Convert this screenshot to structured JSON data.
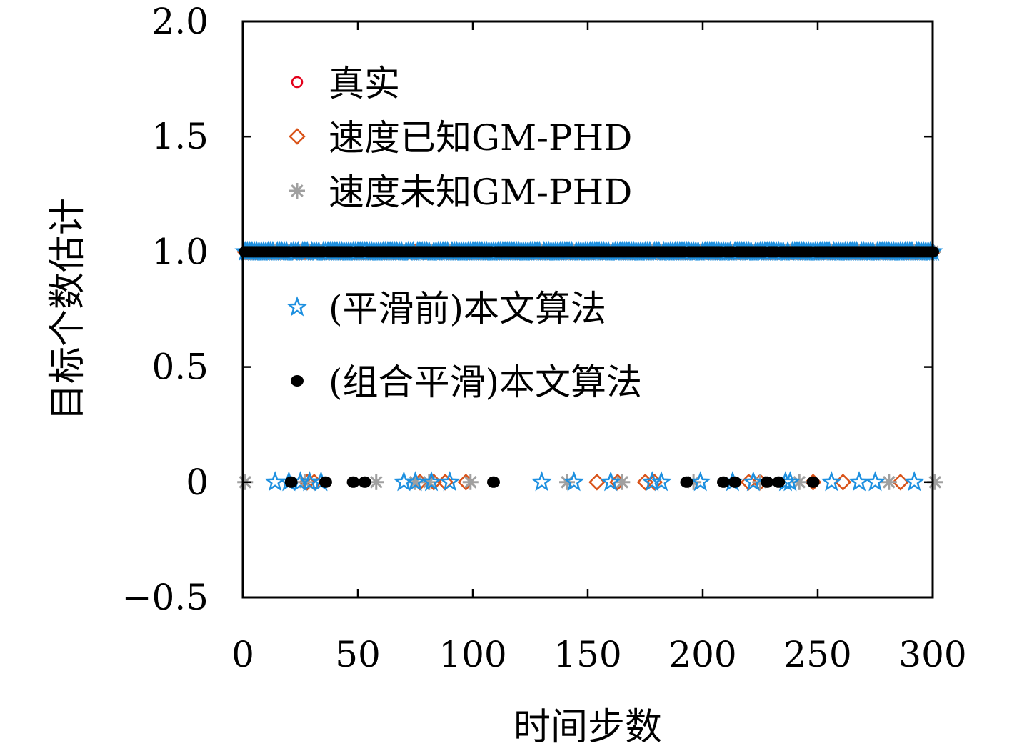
{
  "chart_data": {
    "type": "scatter",
    "title": "",
    "xlabel": "时间步数",
    "ylabel": "目标个数估计",
    "xlim": [
      0,
      300
    ],
    "ylim": [
      -0.5,
      2.0
    ],
    "xticks": [
      0,
      50,
      100,
      150,
      200,
      250,
      300
    ],
    "yticks": [
      -0.5,
      0,
      0.5,
      1.0,
      1.5,
      2.0
    ],
    "xtick_labels": [
      "0",
      "50",
      "100",
      "150",
      "200",
      "250",
      "300"
    ],
    "ytick_labels": [
      "−0.5",
      "0",
      "0.5",
      "1.0",
      "1.5",
      "2.0"
    ],
    "grid": false,
    "legend_placement": "top-left, split into two groups",
    "series": [
      {
        "name": "真实",
        "marker": "circle",
        "color": "#e3001b",
        "ones_range": [
          1,
          300
        ],
        "zeros": []
      },
      {
        "name": "速度已知GM-PHD",
        "marker": "diamond",
        "color": "#d95319",
        "ones_range": [
          1,
          300
        ],
        "zeros": [
          28,
          31,
          77,
          83,
          88,
          97,
          154,
          163,
          175,
          179,
          220,
          225,
          248,
          261,
          286
        ]
      },
      {
        "name": "速度未知GM-PHD",
        "marker": "asterisk",
        "color": "#a0a0a0",
        "ones_range": [
          1,
          300
        ],
        "zeros": [
          1,
          27,
          58,
          75,
          81,
          99,
          141,
          165,
          196,
          225,
          242,
          281,
          301
        ]
      },
      {
        "name": "(平滑前)本文算法",
        "marker": "star",
        "color": "#1e90e0",
        "ones_range": [
          1,
          300
        ],
        "zeros": [
          14,
          20,
          25,
          29,
          34,
          70,
          75,
          82,
          90,
          130,
          144,
          160,
          178,
          182,
          199,
          213,
          222,
          236,
          238,
          256,
          268,
          275,
          292
        ]
      },
      {
        "name": "(组合平滑)本文算法",
        "marker": "dot",
        "color": "#000000",
        "ones_range": [
          1,
          300
        ],
        "zeros": [
          21,
          36,
          48,
          53,
          109,
          193,
          209,
          214,
          228,
          233,
          248
        ]
      }
    ]
  }
}
